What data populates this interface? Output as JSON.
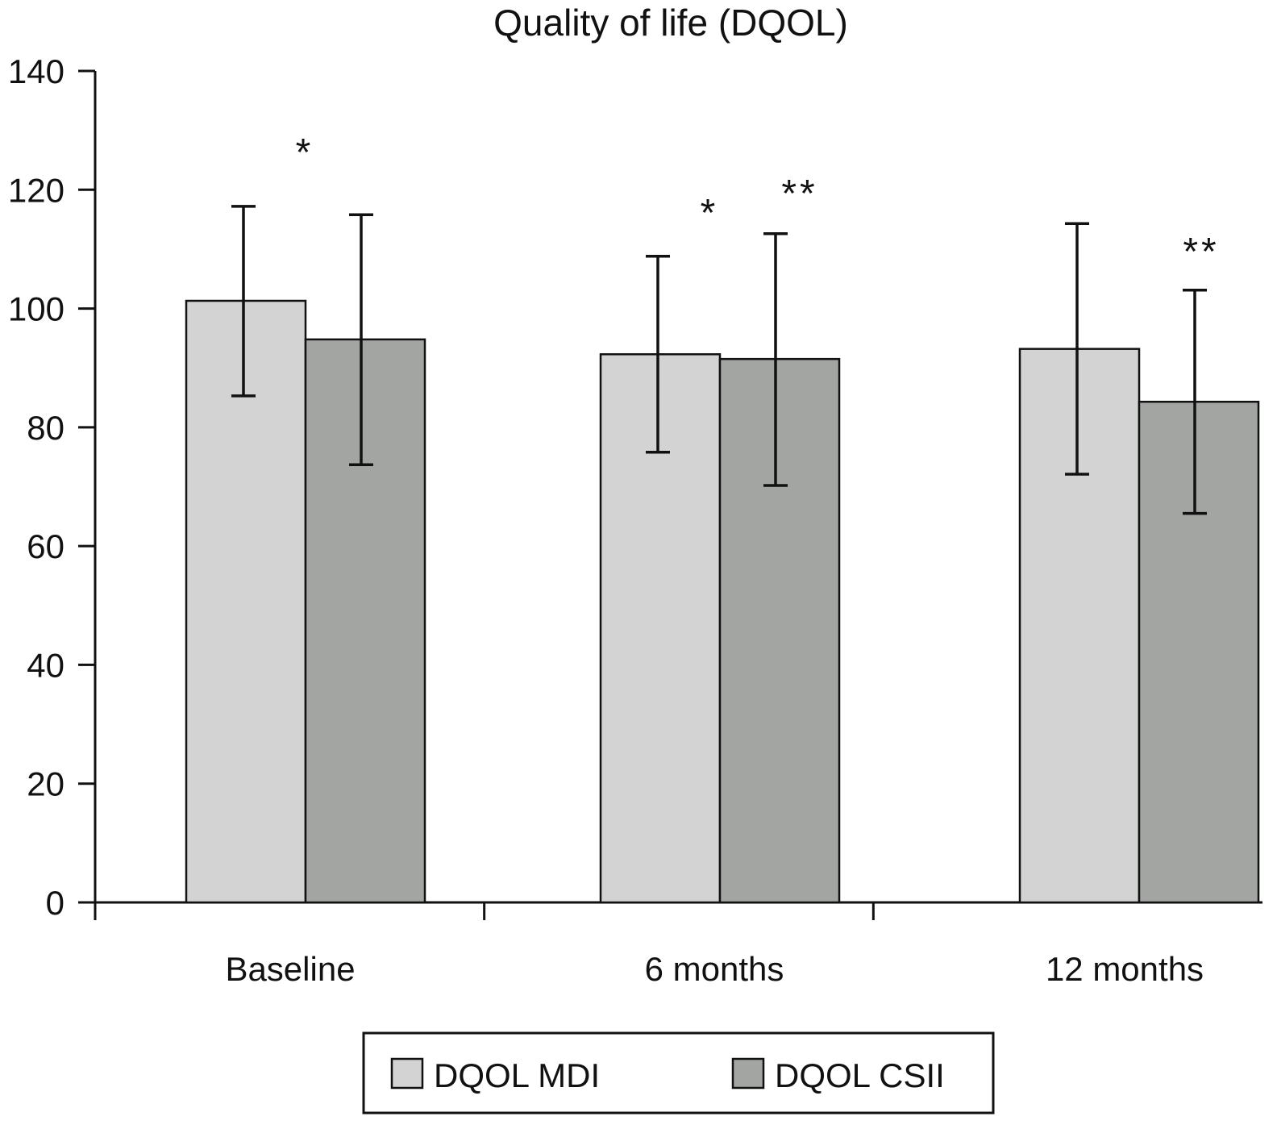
{
  "chart_data": {
    "type": "bar",
    "title": "Quality of life (DQOL)",
    "xlabel": "",
    "ylabel": "",
    "ylim": [
      0,
      140
    ],
    "yticks": [
      0,
      20,
      40,
      60,
      80,
      100,
      120,
      140
    ],
    "grid": false,
    "legend_position": "bottom",
    "categories": [
      "Baseline",
      "6 months",
      "12 months"
    ],
    "series": [
      {
        "name": "DQOL MDI",
        "color": "#d3d3d3",
        "values": [
          101.3,
          92.3,
          93.2
        ],
        "error_low": [
          85.3,
          75.8,
          72.1
        ],
        "error_high": [
          117.2,
          108.8,
          114.3
        ]
      },
      {
        "name": "DQOL CSII",
        "color": "#a3a5a3",
        "values": [
          94.8,
          91.5,
          84.3
        ],
        "error_low": [
          73.7,
          70.2,
          65.5
        ],
        "error_high": [
          115.8,
          112.6,
          103.1
        ]
      }
    ],
    "annotations": [
      {
        "text": "*",
        "category": "Baseline",
        "position": "between bars"
      },
      {
        "text": "*",
        "category": "6 months",
        "series": "DQOL MDI"
      },
      {
        "text": "**",
        "category": "6 months",
        "series": "DQOL CSII"
      },
      {
        "text": "**",
        "category": "12 months",
        "series": "DQOL CSII"
      }
    ]
  }
}
